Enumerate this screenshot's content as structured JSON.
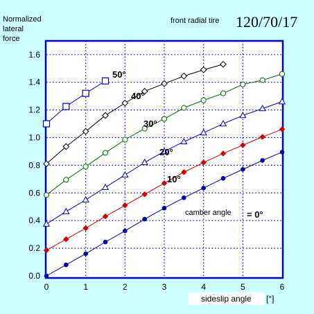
{
  "chart_data": {
    "type": "line",
    "ylabel_lines": [
      "Normalized",
      "lateral",
      "force"
    ],
    "title_left": "front radial tire",
    "title_right": "120/70/17",
    "xlabel": "sideslip angle",
    "xunit": "[°]",
    "camber_label": "camber angle",
    "xlim": [
      0,
      6
    ],
    "ylim": [
      0,
      1.7
    ],
    "x_ticks": [
      "0",
      "1",
      "2",
      "3",
      "4",
      "5",
      "6"
    ],
    "y_ticks": [
      "0.0",
      "0.2",
      "0.4",
      "0.6",
      "0.8",
      "1.0",
      "1.2",
      "1.4",
      "1.6"
    ],
    "grid": true,
    "colors": {
      "background": "#ccffff",
      "plot_background": "#ffffff",
      "frame": "#0000cc",
      "grid": "#0000cc"
    },
    "series": [
      {
        "label": "= 0°",
        "color": "#0000aa",
        "marker": "circle-filled",
        "x": [
          0,
          0.5,
          1,
          1.5,
          2,
          2.5,
          3,
          3.5,
          4,
          4.5,
          5,
          5.5,
          6
        ],
        "y": [
          0.0,
          0.08,
          0.16,
          0.245,
          0.325,
          0.41,
          0.49,
          0.565,
          0.635,
          0.705,
          0.77,
          0.835,
          0.895
        ]
      },
      {
        "label": "10°",
        "color": "#cc0000",
        "marker": "diamond-filled",
        "x": [
          0,
          0.5,
          1,
          1.5,
          2,
          2.5,
          3,
          3.5,
          4,
          4.5,
          5,
          5.5,
          6
        ],
        "y": [
          0.185,
          0.265,
          0.345,
          0.43,
          0.51,
          0.59,
          0.67,
          0.75,
          0.82,
          0.885,
          0.945,
          1.005,
          1.06
        ]
      },
      {
        "label": "20°",
        "color": "#0000cc",
        "marker": "triangle-open",
        "x": [
          0,
          0.5,
          1,
          1.5,
          2,
          2.5,
          3,
          3.5,
          4,
          4.5,
          5,
          5.5,
          6
        ],
        "y": [
          0.375,
          0.465,
          0.55,
          0.64,
          0.73,
          0.82,
          0.9,
          0.97,
          1.035,
          1.1,
          1.16,
          1.21,
          1.26
        ]
      },
      {
        "label": "30°",
        "color": "#006600",
        "marker": "circle-open",
        "x": [
          0,
          0.5,
          1,
          1.5,
          2,
          2.5,
          3,
          3.5,
          4,
          4.5,
          5,
          5.5,
          6
        ],
        "y": [
          0.585,
          0.695,
          0.79,
          0.89,
          0.985,
          1.065,
          1.135,
          1.215,
          1.27,
          1.32,
          1.385,
          1.415,
          1.46
        ]
      },
      {
        "label": "40°",
        "color": "#000000",
        "marker": "diamond-open",
        "x": [
          0,
          0.5,
          1,
          1.5,
          2,
          2.5,
          3,
          3.5,
          4,
          4.5
        ],
        "y": [
          0.81,
          0.935,
          1.045,
          1.16,
          1.25,
          1.335,
          1.39,
          1.445,
          1.49,
          1.53
        ]
      },
      {
        "label": "50°",
        "color": "#0000cc",
        "marker": "square-open",
        "x": [
          0,
          0.5,
          1,
          1.5
        ],
        "y": [
          1.1,
          1.225,
          1.32,
          1.41
        ]
      }
    ]
  }
}
